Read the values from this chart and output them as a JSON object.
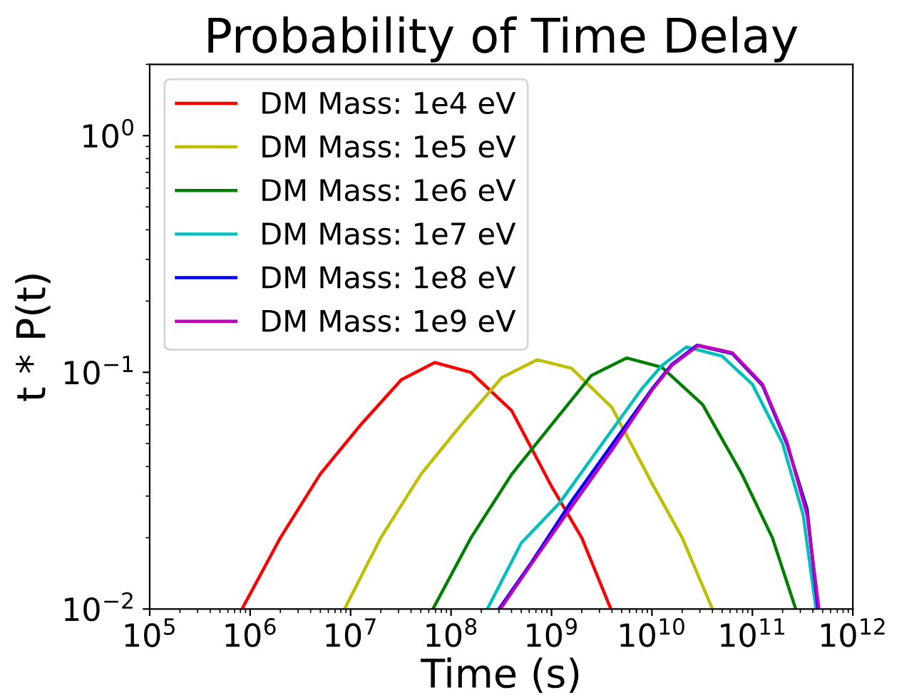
{
  "chart_data": {
    "type": "line",
    "title": "Probability of Time Delay",
    "xlabel": "Time (s)",
    "ylabel": "t * P(t)",
    "log": "xy",
    "grid": false,
    "legend": "top left",
    "marker": "none",
    "line_style": "solid",
    "xlim": [
      100000.0,
      1000000000000.0
    ],
    "xticks": [
      {
        "value": 100000.0,
        "label": "10$^{5}$"
      },
      {
        "value": 1000000.0,
        "label": "10$^{6}$"
      },
      {
        "value": 10000000.0,
        "label": "10$^{7}$"
      },
      {
        "value": 100000000.0,
        "label": "10$^{8}$"
      },
      {
        "value": 1000000000.0,
        "label": "10$^{9}$"
      },
      {
        "value": 10000000000.0,
        "label": "10$^{10}$"
      },
      {
        "value": 100000000000.0,
        "label": "10$^{11}$"
      },
      {
        "value": 1000000000000.0,
        "label": "10$^{12}$"
      }
    ],
    "ylim": [
      0.01,
      2
    ],
    "yticks": [
      {
        "value": 0.01,
        "label": "10$^{−2}$"
      },
      {
        "value": 0.1,
        "label": "10$^{−1}$"
      },
      {
        "value": 1,
        "label": "10$^{0}$"
      }
    ],
    "series": [
      {
        "name": "DM Mass: 1e4 eV",
        "color": "#ff0000",
        "x": [
          830000.0,
          2000000.0,
          5000000.0,
          12600000.0,
          32000000.0,
          69000000.0,
          158000000.0,
          400000000.0,
          1000000000.0,
          2000000000.0,
          3900000000.0
        ],
        "values": [
          0.01,
          0.02,
          0.0372,
          0.06,
          0.093,
          0.11,
          0.1,
          0.069,
          0.033,
          0.02,
          0.01
        ]
      },
      {
        "name": "DM Mass: 1e5 eV",
        "color": "#bfbf00",
        "x": [
          8700000.0,
          20000000.0,
          50000000.0,
          126000000.0,
          320000000.0,
          720000000.0,
          1580000000.0,
          4000000000.0,
          10000000000.0,
          20000000000.0,
          40000000000.0
        ],
        "values": [
          0.01,
          0.02,
          0.037,
          0.06,
          0.095,
          0.113,
          0.104,
          0.071,
          0.034,
          0.02,
          0.01
        ]
      },
      {
        "name": "DM Mass: 1e6 eV",
        "color": "#008000",
        "x": [
          66000000.0,
          158000000.0,
          400000000.0,
          1000000000.0,
          2500000000.0,
          5600000000.0,
          12600000000.0,
          32000000000.0,
          79000000000.0,
          158000000000.0,
          270000000000.0
        ],
        "values": [
          0.01,
          0.02,
          0.037,
          0.06,
          0.097,
          0.115,
          0.105,
          0.073,
          0.037,
          0.02,
          0.01
        ]
      },
      {
        "name": "DM Mass: 1e7 eV",
        "color": "#00bfbf",
        "x": [
          230000000.0,
          500000000.0,
          1200000000.0,
          3200000000.0,
          7900000000.0,
          12600000000.0,
          22000000000.0,
          50000000000.0,
          100000000000.0,
          200000000000.0,
          320000000000.0,
          430000000000.0
        ],
        "values": [
          0.01,
          0.019,
          0.028,
          0.05,
          0.085,
          0.107,
          0.128,
          0.117,
          0.089,
          0.05,
          0.025,
          0.01
        ]
      },
      {
        "name": "DM Mass: 1e8 eV",
        "color": "#0000ff",
        "x": [
          300000000.0,
          630000000.0,
          1580000000.0,
          4000000000.0,
          10000000000.0,
          15800000000.0,
          28000000000.0,
          63000000000.0,
          126000000000.0,
          220000000000.0,
          350000000000.0,
          450000000000.0
        ],
        "values": [
          0.01,
          0.0157,
          0.0285,
          0.0495,
          0.085,
          0.108,
          0.13,
          0.12,
          0.088,
          0.05,
          0.0265,
          0.01
        ]
      },
      {
        "name": "DM Mass: 1e9 eV",
        "color": "#bf00bf",
        "x": [
          310000000.0,
          630000000.0,
          1580000000.0,
          4000000000.0,
          10000000000.0,
          15800000000.0,
          29000000000.0,
          63000000000.0,
          126000000000.0,
          220000000000.0,
          350000000000.0,
          460000000000.0
        ],
        "values": [
          0.01,
          0.0155,
          0.027,
          0.047,
          0.084,
          0.107,
          0.13,
          0.121,
          0.089,
          0.051,
          0.025,
          0.01
        ]
      }
    ]
  }
}
